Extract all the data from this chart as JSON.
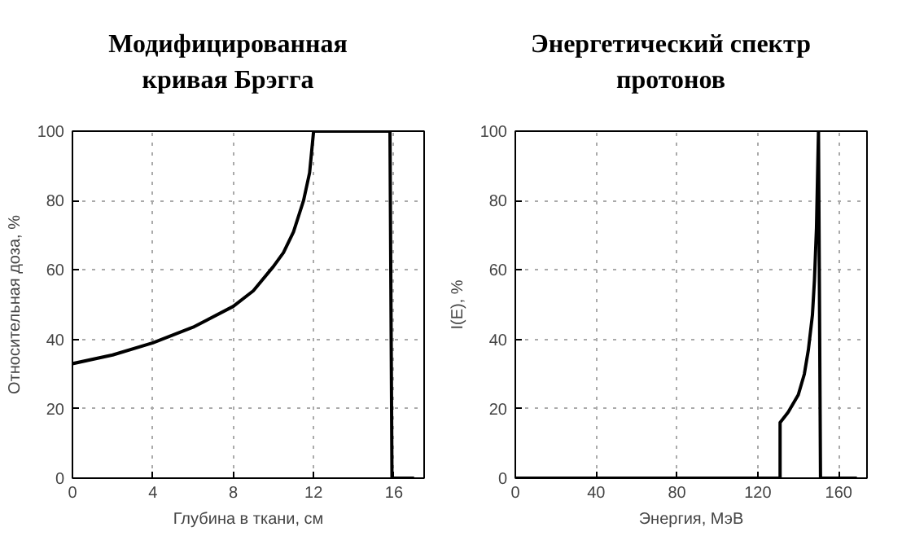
{
  "chart_data": [
    {
      "type": "line",
      "title": "Модифицированная кривая Брэгга",
      "xlabel": "Глубина в ткани, см",
      "ylabel": "Относительная доза, %",
      "x": [
        0,
        2,
        4,
        6,
        8,
        9,
        10,
        10.5,
        11,
        11.5,
        11.8,
        12,
        15.8,
        15.9,
        17
      ],
      "series": [
        {
          "color": "#000000",
          "values": [
            33,
            35.5,
            39,
            43.5,
            49.5,
            54,
            61,
            65,
            71,
            80,
            88,
            100,
            100,
            0,
            0
          ]
        }
      ],
      "xlim": [
        0,
        17.5
      ],
      "ylim": [
        0,
        100
      ],
      "xticks": [
        0,
        4,
        8,
        12,
        16
      ],
      "yticks": [
        0,
        20,
        40,
        60,
        80,
        100
      ],
      "grid": true,
      "line_style": "solid"
    },
    {
      "type": "line",
      "title": "Энергетический спектр протонов",
      "xlabel": "Энергия, МэВ",
      "ylabel": "I(E), %",
      "x": [
        0,
        131,
        131,
        135,
        140,
        143,
        145,
        147,
        148,
        149,
        150,
        151,
        169
      ],
      "series": [
        {
          "color": "#000000",
          "values": [
            0,
            0,
            16,
            19,
            24,
            30,
            37,
            47,
            57,
            72,
            100,
            0,
            0
          ]
        }
      ],
      "xlim": [
        0,
        174
      ],
      "ylim": [
        0,
        100
      ],
      "xticks": [
        0,
        40,
        80,
        120,
        160
      ],
      "yticks": [
        0,
        20,
        40,
        60,
        80,
        100
      ],
      "grid": true,
      "line_style": "solid"
    }
  ]
}
